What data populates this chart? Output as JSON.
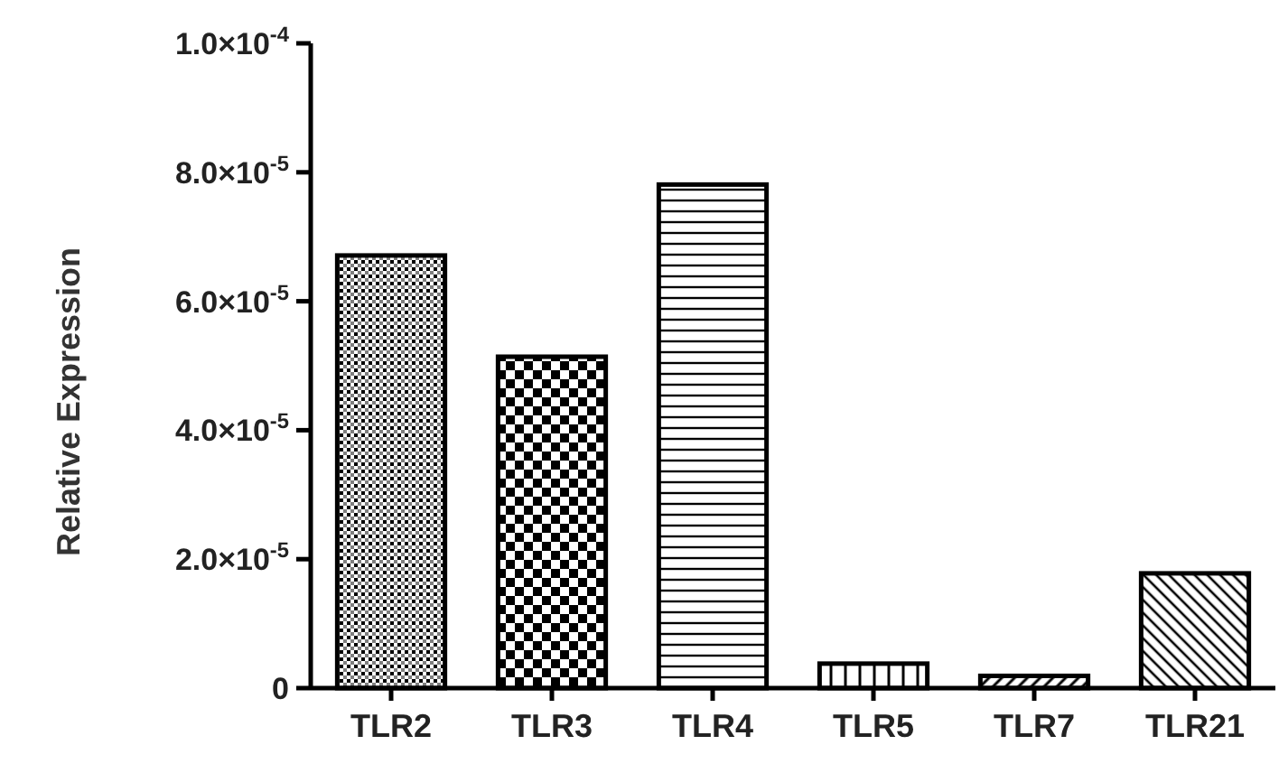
{
  "chart_data": {
    "type": "bar",
    "ylabel": "Relative Expression",
    "categories": [
      "TLR2",
      "TLR3",
      "TLR4",
      "TLR5",
      "TLR7",
      "TLR21"
    ],
    "values": [
      6.71e-05,
      5.14e-05,
      7.81e-05,
      3.8e-06,
      1.9e-06,
      1.78e-05
    ],
    "colors": [
      "#000000",
      "#000000",
      "#000000",
      "#000000",
      "#000000",
      "#000000"
    ],
    "ylim": [
      0,
      0.0001
    ],
    "yticks": [
      0,
      {
        "value": 2e-05,
        "label": "2.0×10$^{-5}$"
      },
      {
        "value": 4e-05,
        "label": "4.0×10$^{-5}$"
      },
      {
        "value": 6e-05,
        "label": "6.0×10$^{-5}$"
      },
      {
        "value": 8e-05,
        "label": "8.0×10$^{-5}$"
      },
      {
        "value": 0.0001,
        "label": "1.0×10$^{-4}$"
      }
    ],
    "grid": false
  }
}
